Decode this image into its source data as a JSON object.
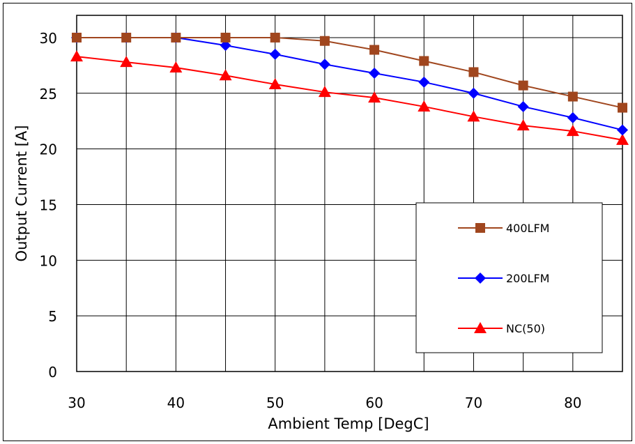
{
  "chart_data": {
    "type": "line",
    "title": "",
    "xlabel": "Ambient Temp [DegC]",
    "ylabel": "Output Current [A]",
    "xlim": [
      30,
      85
    ],
    "ylim": [
      0,
      32
    ],
    "xticks": [
      30,
      40,
      50,
      60,
      70,
      80
    ],
    "yticks": [
      0,
      5,
      10,
      15,
      20,
      25,
      30
    ],
    "grid": true,
    "legend": "lower-right",
    "x": [
      30,
      35,
      40,
      45,
      50,
      55,
      60,
      65,
      70,
      75,
      80,
      85
    ],
    "series": [
      {
        "name": "400LFM",
        "color": "#A0461E",
        "marker": "square",
        "values": [
          30.0,
          30.0,
          30.0,
          30.0,
          30.0,
          29.7,
          28.9,
          27.9,
          26.9,
          25.7,
          24.7,
          23.7
        ]
      },
      {
        "name": "200LFM",
        "color": "#0000FF",
        "marker": "diamond",
        "values": [
          30.0,
          30.0,
          30.0,
          29.3,
          28.5,
          27.6,
          26.8,
          26.0,
          25.0,
          23.8,
          22.8,
          21.7
        ]
      },
      {
        "name": "NC(50)",
        "color": "#FF0000",
        "marker": "triangle",
        "values": [
          28.3,
          27.8,
          27.3,
          26.6,
          25.8,
          25.1,
          24.6,
          23.8,
          22.9,
          22.1,
          21.6,
          20.8
        ]
      }
    ]
  }
}
